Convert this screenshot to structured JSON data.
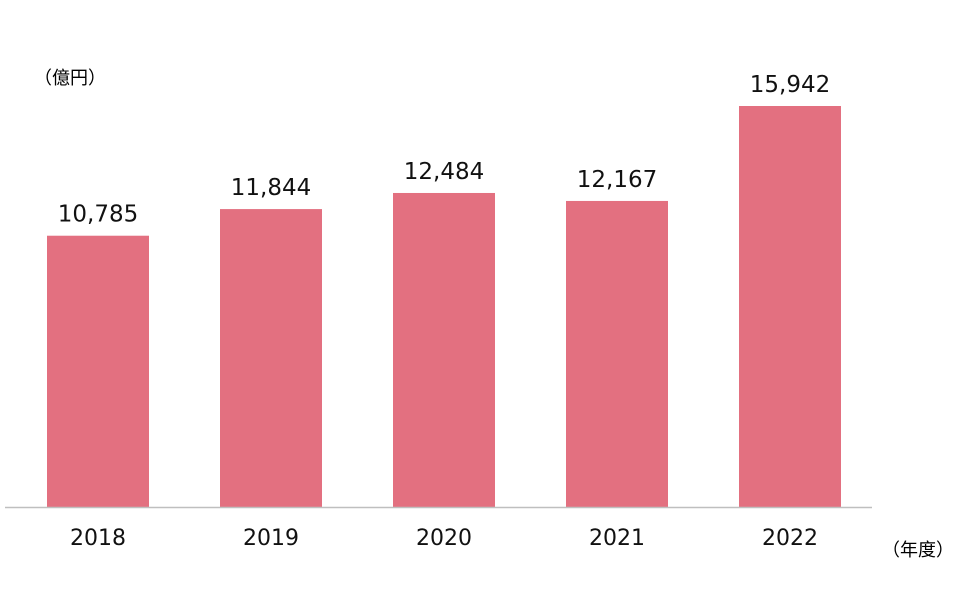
{
  "chart_data": {
    "type": "bar",
    "categories": [
      "2018",
      "2019",
      "2020",
      "2021",
      "2022"
    ],
    "values": [
      10785,
      11844,
      12484,
      12167,
      15942
    ],
    "value_labels": [
      "10,785",
      "11,844",
      "12,484",
      "12,167",
      "15,942"
    ],
    "y_unit": "（億円）",
    "x_unit": "（年度）",
    "ylim": [
      0,
      16000
    ],
    "grid": false,
    "bar_color": "#e37080",
    "axis_color": "#bfbfbf"
  }
}
